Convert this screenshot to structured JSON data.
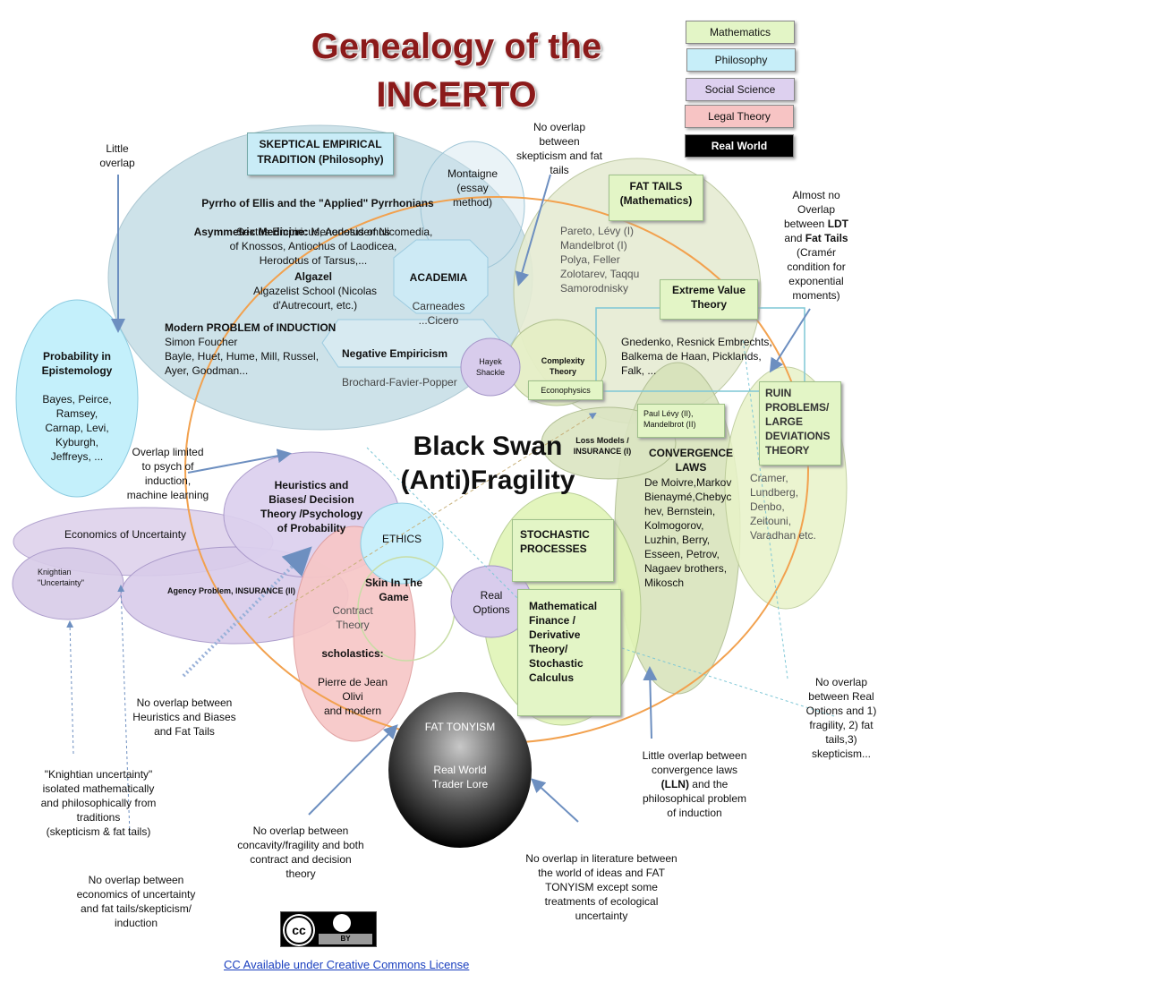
{
  "title": {
    "line1": "Genealogy of the",
    "line2": "INCERTO"
  },
  "legend": [
    {
      "label": "Mathematics",
      "color": "#e3f5c6"
    },
    {
      "label": "Philosophy",
      "color": "#c7eef9"
    },
    {
      "label": "Social Science",
      "color": "#ddd0ef"
    },
    {
      "label": "Legal Theory",
      "color": "#f7c4c4"
    },
    {
      "label": "Real World",
      "color": "#000000"
    }
  ],
  "center": {
    "line1": "Black Swan",
    "line2": "(Anti)Fragility"
  },
  "skeptical": {
    "header": "SKEPTICAL EMPIRICAL\nTRADITION (Philosophy)",
    "pyrrho_title": "Pyrrho of Ellis and the \"Applied\" Pyrrhonians",
    "asym_label": "Asymmetric Medicine:",
    "asym_text": " Menodotus of Nicomedia,",
    "names": "Sextus Empiricus, Aenesidemus\nof Knossos, Antiochus of Laodicea,\nHerodotus of Tarsus,...",
    "algazel": "Algazel",
    "algazelist": "Algazelist School (Nicolas\nd'Autrecourt, etc.)",
    "induction_title": "Modern PROBLEM of INDUCTION",
    "induction_names": "Simon Foucher\nBayle, Huet, Hume, Mill, Russel,\nAyer, Goodman..."
  },
  "montaigne": "Montaigne\n(essay\nmethod)",
  "academia": {
    "title": "ACADEMIA",
    "names": "Carneades\n...Cicero"
  },
  "negative_empiricism": {
    "title": "Negative Empiricism",
    "names": "Brochard-Favier-Popper"
  },
  "hayek": "Hayek\nShackle",
  "probability_epistemology": {
    "title": "Probability in\nEpistemology",
    "names": "Bayes, Peirce,\nRamsey,\nCarnap,  Levi,\nKyburgh,\nJeffreys, ..."
  },
  "fat_tails": {
    "header": "FAT TAILS\n(Mathematics)",
    "names": "Pareto, Lévy (I)\nMandelbrot (I)\nPolya,  Feller\nZolotarev, Taqqu\nSamorodnisky"
  },
  "evt": {
    "header": "Extreme Value\nTheory",
    "names": "Gnedenko, Resnick Embrechts,\nBalkema de Haan, Picklands,\nFalk, ..."
  },
  "complexity": {
    "label": "Complexity\nTheory",
    "econophysics": "Econophysics"
  },
  "ruin": {
    "header": "RUIN\nPROBLEMS/\nLARGE\nDEVIATIONS\nTHEORY",
    "names": "Cramer,\nLundberg,\nDenbo,\nZeitouni,\nVaradhan  etc."
  },
  "paul_levy": "Paul Lévy (II),\nMandelbrot (II)",
  "loss_models": "Loss Models /\nINSURANCE (I)",
  "convergence": {
    "header": "CONVERGENCE\nLAWS",
    "names": "De Moivre,Markov\nBienaymé,Chebyc\nhev, Bernstein,\nKolmogorov,\nLuzhin, Berry,\nEsseen, Petrov,\nNagaev brothers,\nMikosch"
  },
  "stochastic": "STOCHASTIC\nPROCESSES",
  "math_finance": "Mathematical\nFinance /\nDerivative\nTheory/\nStochastic\nCalculus",
  "heuristics": "Heuristics and\nBiases/  Decision\nTheory /Psychology\nof Probability",
  "ethics": "ETHICS",
  "skin": "Skin In The\nGame",
  "real_options": "Real\nOptions",
  "economics_uncertainty": "Economics of Uncertainty",
  "knightian": "Knightian\n\"Uncertainty\"",
  "agency": "Agency Problem,  INSURANCE (II)",
  "contract": {
    "title": "Contract\nTheory",
    "bold": "scholastics:",
    "names": "Pierre de Jean\nOlivi\nand modern"
  },
  "fat_tonyism": {
    "title": "FAT TONYISM",
    "sub": "Real World\nTrader Lore"
  },
  "notes": {
    "little_overlap": "Little\noverlap",
    "no_overlap_skeptic": "No overlap\nbetween\nskepticism and fat\ntails",
    "ldt_pre": "Almost no\nOverlap\nbetween ",
    "ldt_b1": "LDT",
    "ldt_mid": "\nand ",
    "ldt_b2": "Fat Tails",
    "ldt_post": "\n(Cramér\ncondition for\nexponential\nmoments)",
    "overlap_limited": "Overlap limited\nto psych of\ninduction,\nmachine learning",
    "no_overlap_heuristics": "No overlap between\nHeuristics and Biases\nand Fat Tails",
    "knightian_isolated": "\"Knightian uncertainty\"\nisolated mathematically\nand philosophically from\ntraditions\n(skepticism & fat tails)",
    "no_overlap_concavity": "No overlap between\nconcavity/fragility and both\ncontract and  decision\ntheory",
    "no_overlap_econ": "No overlap between\neconomics of uncertainty\nand fat tails/skepticism/\ninduction",
    "no_overlap_lit": "No overlap in literature between\nthe world of ideas and FAT\nTONYISM except some\ntreatments of ecological\nuncertainty",
    "lln_pre": "Little overlap between\nconvergence laws\n",
    "lln_b": "(LLN)",
    "lln_post": " and the\nphilosophical problem\nof induction",
    "no_overlap_real_options": "No overlap\nbetween Real\nOptions and 1)\nfragility, 2) fat\ntails,3)\nskepticism..."
  },
  "cc_logo": {
    "cc": "cc",
    "by": "BY"
  },
  "cc_link": "CC Available under Creative Commons License"
}
